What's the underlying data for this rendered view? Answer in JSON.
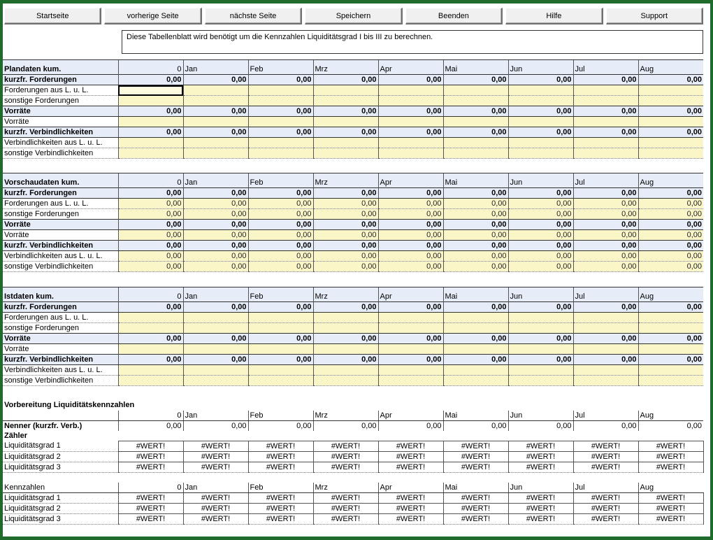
{
  "toolbar": {
    "buttons": [
      "Startseite",
      "vorherige Seite",
      "nächste Seite",
      "Speichern",
      "Beenden",
      "Hilfe",
      "Support"
    ]
  },
  "info_text": "Diese Tabellenblatt wird benötigt um die Kennzahlen Liquiditätsgrad I bis III zu berechnen.",
  "months": [
    "0",
    "Jan",
    "Feb",
    "Mrz",
    "Apr",
    "Mai",
    "Jun",
    "Jul",
    "Aug"
  ],
  "zero": "0,00",
  "wert": "#WERT!",
  "labels": {
    "kurzfr_forderungen": "kurzfr. Forderungen",
    "forderungen_lul": "Forderungen aus L. u. L.",
    "sonstige_forderungen": "sonstige Forderungen",
    "vorraete_bold": "Vorräte",
    "vorraete": "Vorräte",
    "kurzfr_verbindlichkeiten": "kurzfr. Verbindlichkeiten",
    "verbindlichkeiten_lul": "Verbindlichkeiten aus L. u. L.",
    "sonstige_verbindlichkeiten": "sonstige Verbindlichkeiten"
  },
  "sections": [
    {
      "title": "Plandaten kum.",
      "sub_filled": false
    },
    {
      "title": "Vorschaudaten kum.",
      "sub_filled": true
    },
    {
      "title": "Istdaten kum.",
      "sub_filled": false
    }
  ],
  "prep": {
    "title": "Vorbereitung Liquiditätskennzahlen",
    "nenner_label": "Nenner (kurzfr. Verb.)",
    "zaehler_label": "Zähler",
    "rows": [
      "Liquiditätsgrad 1",
      "Liquiditätsgrad 2",
      "Liquiditätsgrad 3"
    ]
  },
  "kennzahlen": {
    "title": "Kennzahlen",
    "rows": [
      "Liquiditätsgrad 1",
      "Liquiditätsgrad 2",
      "Liquiditätsgrad 3"
    ]
  },
  "colors": {
    "frame": "#1e6b2c",
    "header_bar": "#e6ecf8",
    "input_cell": "#fbf6c8"
  }
}
